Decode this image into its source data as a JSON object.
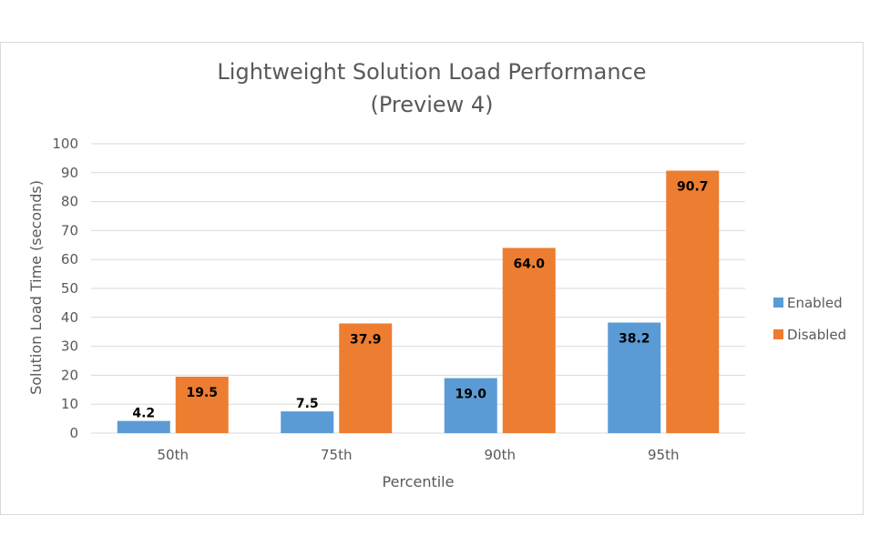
{
  "chart_data": {
    "type": "bar",
    "title": "Lightweight Solution Load Performance",
    "subtitle": "(Preview 4)",
    "xlabel": "Percentile",
    "ylabel": "Solution Load Time (seconds)",
    "categories": [
      "50th",
      "75th",
      "90th",
      "95th"
    ],
    "ylim": [
      0,
      100
    ],
    "yticks": [
      0,
      10,
      20,
      30,
      40,
      50,
      60,
      70,
      80,
      90,
      100
    ],
    "grid": true,
    "legend_position": "right",
    "series": [
      {
        "name": "Enabled",
        "color": "#5b9bd5",
        "values": [
          4.2,
          7.5,
          19.0,
          38.2
        ],
        "labels": [
          "4.2",
          "7.5",
          "19.0",
          "38.2"
        ]
      },
      {
        "name": "Disabled",
        "color": "#ed7d31",
        "values": [
          19.5,
          37.9,
          64.0,
          90.7
        ],
        "labels": [
          "19.5",
          "37.9",
          "64.0",
          "90.7"
        ]
      }
    ]
  }
}
